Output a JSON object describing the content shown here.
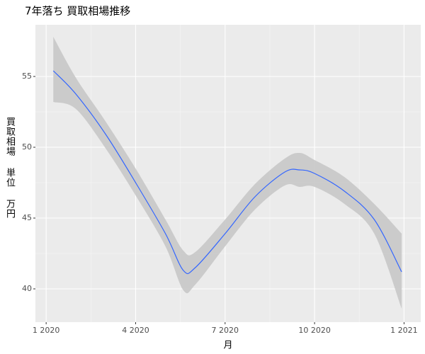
{
  "chart_data": {
    "type": "smooth",
    "title": "7年落ち 買取相場推移",
    "xlabel": "月",
    "ylabel": "買取相場 単位 万円",
    "x": [
      1.24,
      2,
      3,
      4,
      5,
      5.6,
      6,
      7,
      8,
      9,
      9.5,
      10,
      11,
      12,
      12.92
    ],
    "values": [
      55.4,
      53.75,
      50.9,
      47.5,
      43.9,
      41.3,
      41.5,
      43.9,
      46.5,
      48.25,
      48.4,
      48.15,
      46.9,
      44.9,
      41.2
    ],
    "lower": [
      53.2,
      52.7,
      49.9,
      46.6,
      43.0,
      39.9,
      40.3,
      43.0,
      45.6,
      47.3,
      47.2,
      47.2,
      46.0,
      43.9,
      38.6
    ],
    "upper": [
      57.8,
      54.9,
      51.8,
      48.5,
      44.9,
      42.7,
      42.6,
      44.9,
      47.4,
      49.2,
      49.6,
      49.1,
      47.9,
      46.0,
      43.9
    ],
    "color": "#3366ff",
    "band_color": "#c8c8c8",
    "xlim": [
      0.64,
      13.56
    ],
    "ylim": [
      37.65,
      58.65
    ],
    "xticks": [
      {
        "value": 1,
        "label": "1 2020"
      },
      {
        "value": 4,
        "label": "4 2020"
      },
      {
        "value": 7,
        "label": "7 2020"
      },
      {
        "value": 10,
        "label": "10 2020"
      },
      {
        "value": 13,
        "label": "1 2021"
      }
    ],
    "yticks": [
      40,
      45,
      50,
      55
    ],
    "grid": true
  }
}
